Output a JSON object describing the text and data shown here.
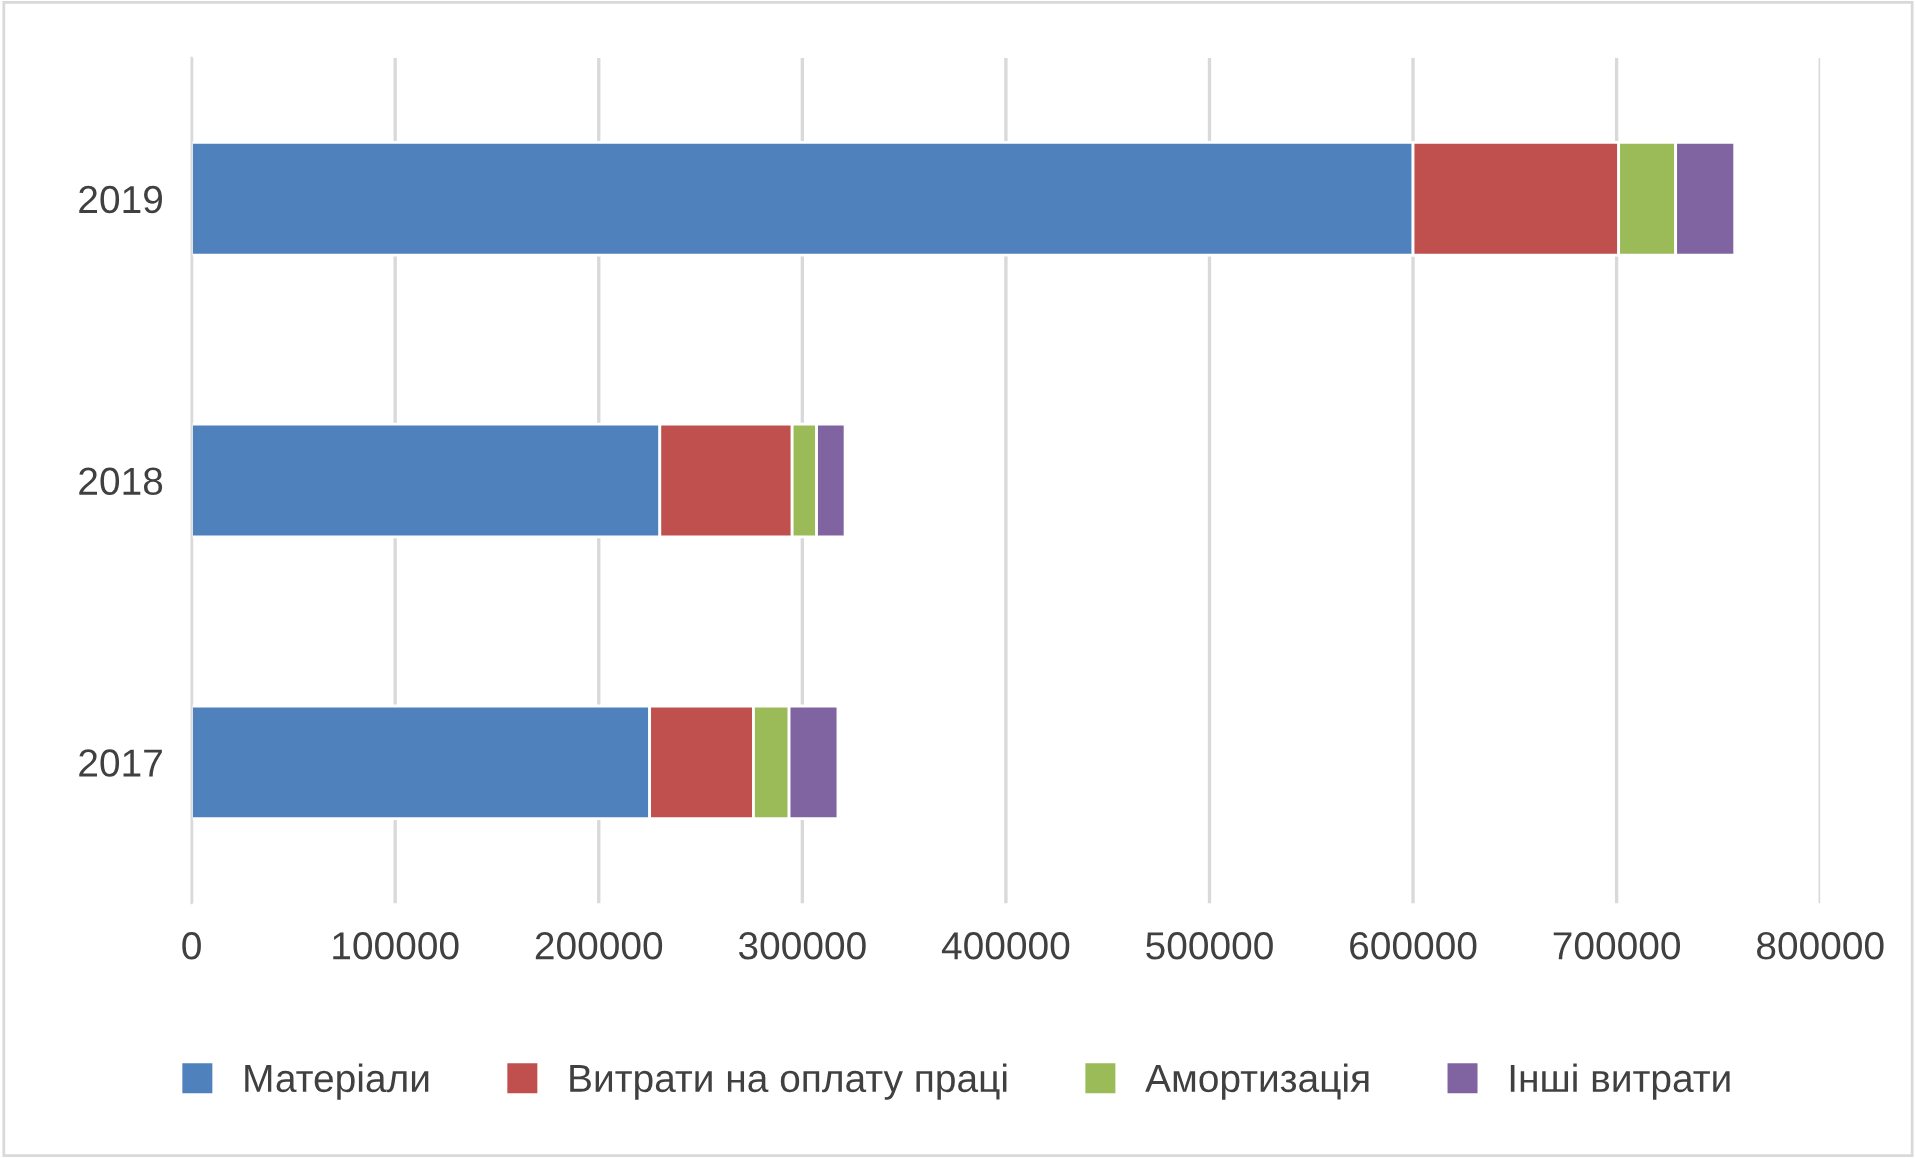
{
  "chart_data": {
    "type": "bar",
    "orientation": "horizontal",
    "stacked": true,
    "categories": [
      "2019",
      "2018",
      "2017"
    ],
    "series": [
      {
        "name": "Матеріали",
        "color": "#4f81bd",
        "values": [
          600000,
          230000,
          225000
        ]
      },
      {
        "name": "Витрати на оплату праці",
        "color": "#c0504d",
        "values": [
          101000,
          65000,
          51000
        ]
      },
      {
        "name": "Амортизація",
        "color": "#9bbb59",
        "values": [
          28000,
          12000,
          17500
        ]
      },
      {
        "name": "Інші витрати",
        "color": "#8064a2",
        "values": [
          29000,
          14000,
          24000
        ]
      }
    ],
    "xlim": [
      0,
      800000
    ],
    "xticks": [
      0,
      100000,
      200000,
      300000,
      400000,
      500000,
      600000,
      700000,
      800000
    ],
    "grid": "x",
    "legend": "bottom"
  }
}
